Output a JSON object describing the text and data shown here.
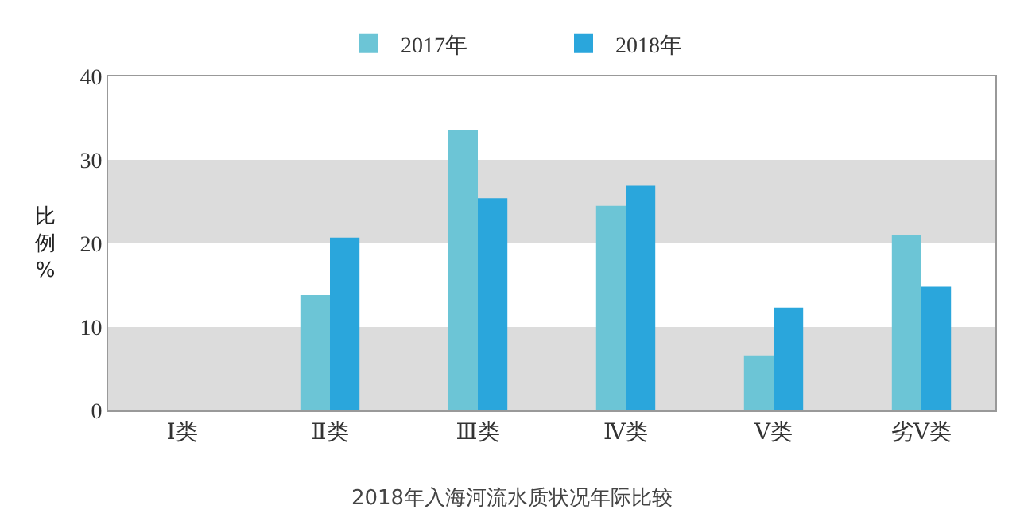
{
  "chart_data": {
    "type": "bar",
    "title": "2018年入海河流水质状况年际比较",
    "ylabel": "比例%",
    "categories": [
      "Ⅰ类",
      "Ⅱ类",
      "Ⅲ类",
      "Ⅳ类",
      "Ⅴ类",
      "劣Ⅴ类"
    ],
    "series": [
      {
        "name": "2017年",
        "color": "#6cc5d6",
        "values": [
          0,
          13.8,
          33.6,
          24.5,
          6.6,
          21.0
        ]
      },
      {
        "name": "2018年",
        "color": "#2aa6dc",
        "values": [
          0,
          20.7,
          25.4,
          26.9,
          12.3,
          14.8
        ]
      }
    ],
    "ylim": [
      0,
      40
    ],
    "yticks": [
      0,
      10,
      20,
      30,
      40
    ],
    "grid": false,
    "legend": "top",
    "bands": [
      {
        "axis": "y",
        "from": 0,
        "to": 10,
        "color": "#dcdcdc"
      },
      {
        "axis": "y",
        "from": 20,
        "to": 30,
        "color": "#dcdcdc"
      }
    ]
  }
}
